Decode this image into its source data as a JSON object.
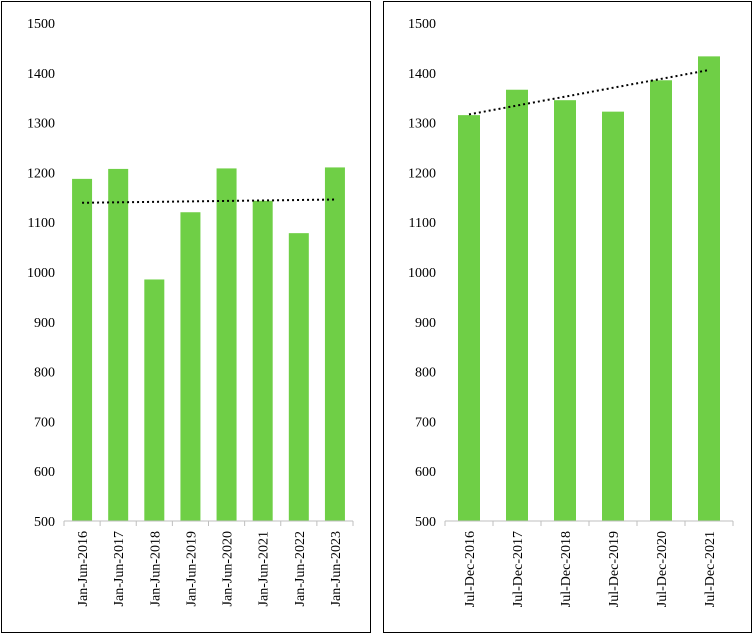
{
  "chart_data": [
    {
      "type": "bar",
      "categories": [
        "Jan-Jun-2016",
        "Jan-Jun-2017",
        "Jan-Jun-2018",
        "Jan-Jun-2019",
        "Jan-Jun-2020",
        "Jan-Jun-2021",
        "Jan-Jun-2022",
        "Jan-Jun-2023"
      ],
      "values": [
        1187,
        1207,
        985,
        1120,
        1208,
        1143,
        1078,
        1210
      ],
      "yticks": [
        "500",
        "600",
        "700",
        "800",
        "900",
        "1000",
        "1100",
        "1200",
        "1300",
        "1400",
        "1500"
      ],
      "ylim": [
        500,
        1500
      ],
      "trendline": "linear",
      "bar_color": "#6fcf46",
      "grid": false
    },
    {
      "type": "bar",
      "categories": [
        "Jul-Dec-2016",
        "Jul-Dec-2017",
        "Jul-Dec-2018",
        "Jul-Dec-2019",
        "Jul-Dec-2020",
        "Jul-Dec-2021"
      ],
      "values": [
        1315,
        1366,
        1345,
        1322,
        1385,
        1433
      ],
      "yticks": [
        "500",
        "600",
        "700",
        "800",
        "900",
        "1000",
        "1100",
        "1200",
        "1300",
        "1400",
        "1500"
      ],
      "ylim": [
        500,
        1500
      ],
      "trendline": "linear",
      "bar_color": "#6fcf46",
      "grid": false
    }
  ]
}
